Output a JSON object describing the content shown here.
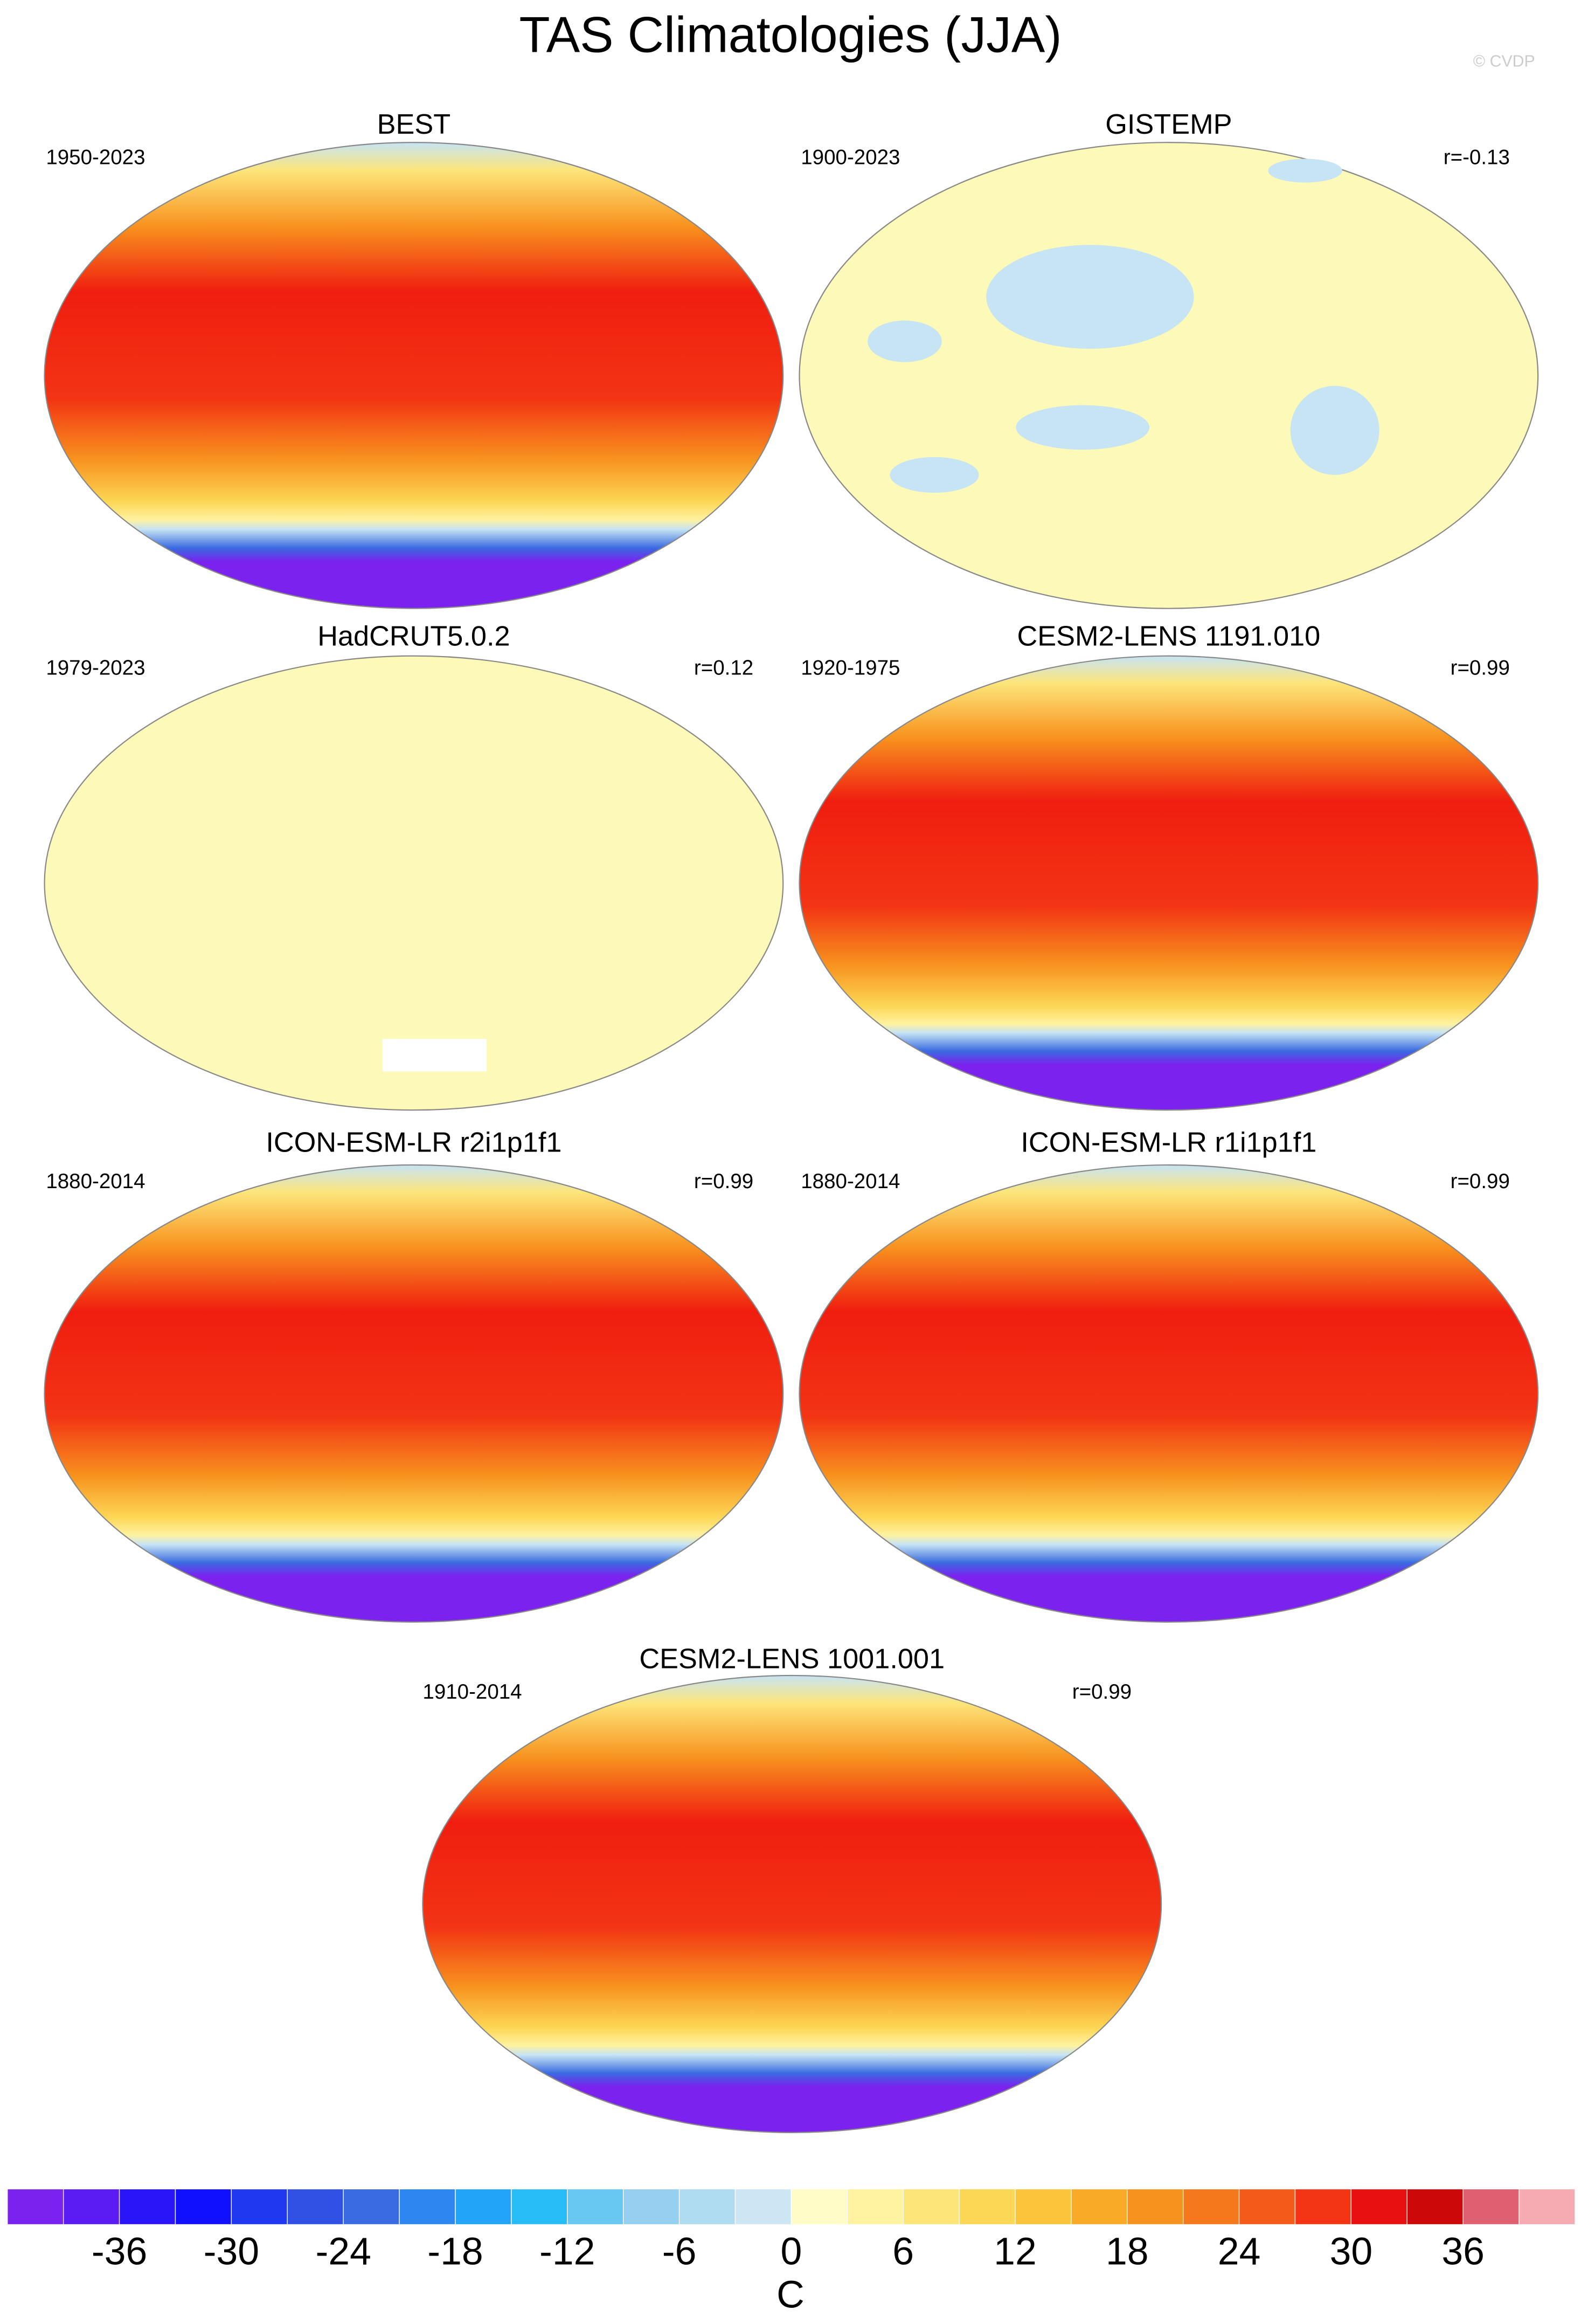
{
  "title": "TAS Climatologies (JJA)",
  "credit": "© CVDP",
  "panels": [
    {
      "title": "BEST",
      "period": "1950-2023"
    },
    {
      "title": "GISTEMP",
      "period": "1900-2023",
      "r": "r=-0.13"
    },
    {
      "title": "HadCRUT5.0.2",
      "period": "1979-2023",
      "r": "r=0.12"
    },
    {
      "title": "CESM2-LENS 1191.010",
      "period": "1920-1975",
      "r": "r=0.99"
    },
    {
      "title": "ICON-ESM-LR r2i1p1f1",
      "period": "1880-2014",
      "r": "r=0.99"
    },
    {
      "title": "ICON-ESM-LR r1i1p1f1",
      "period": "1880-2014",
      "r": "r=0.99"
    },
    {
      "title": "CESM2-LENS 1001.001",
      "period": "1910-2014",
      "r": "r=0.99"
    }
  ],
  "colorbar": {
    "range": [
      -42,
      42
    ],
    "ticks": [
      -36,
      -30,
      -24,
      -18,
      -12,
      -6,
      0,
      6,
      12,
      18,
      24,
      30,
      36
    ],
    "label": "C",
    "colors": [
      "#7b22ee",
      "#5a1cf2",
      "#2a14f8",
      "#1010ff",
      "#2038f0",
      "#3050e4",
      "#3a6ae0",
      "#2e86f0",
      "#22a4f8",
      "#28bcf6",
      "#68c8f2",
      "#96d0f0",
      "#b0dcf2",
      "#cde6f4",
      "#fffcc8",
      "#fff2a0",
      "#fde57a",
      "#fcd655",
      "#fbc43a",
      "#f9ab28",
      "#f8921e",
      "#f6781c",
      "#f45a18",
      "#f23414",
      "#e81010",
      "#cc0808",
      "#e06070",
      "#f6aab2"
    ]
  }
}
